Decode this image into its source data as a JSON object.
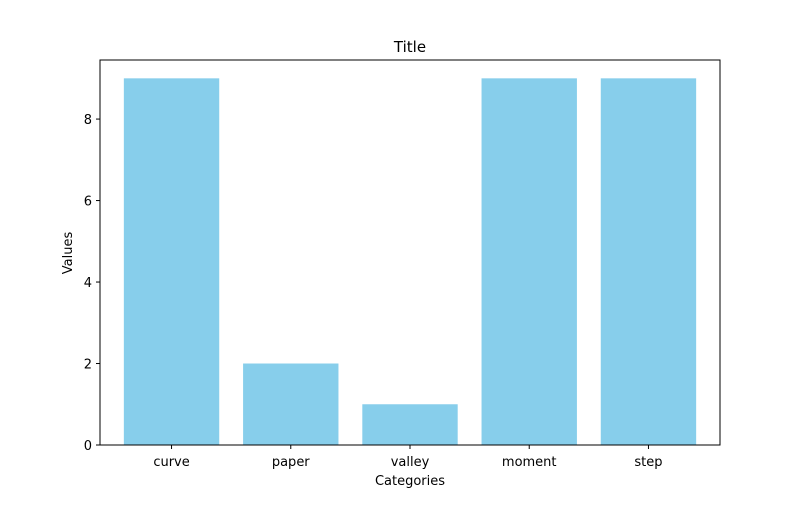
{
  "chart_data": {
    "type": "bar",
    "title": "Title",
    "xlabel": "Categories",
    "ylabel": "Values",
    "categories": [
      "curve",
      "paper",
      "valley",
      "moment",
      "step"
    ],
    "values": [
      9,
      2,
      1,
      9,
      9
    ],
    "ylim": [
      0,
      9.45
    ],
    "yticks": [
      0,
      2,
      4,
      6,
      8
    ],
    "bar_color": "#87ceeb",
    "grid": false,
    "legend": "none"
  }
}
